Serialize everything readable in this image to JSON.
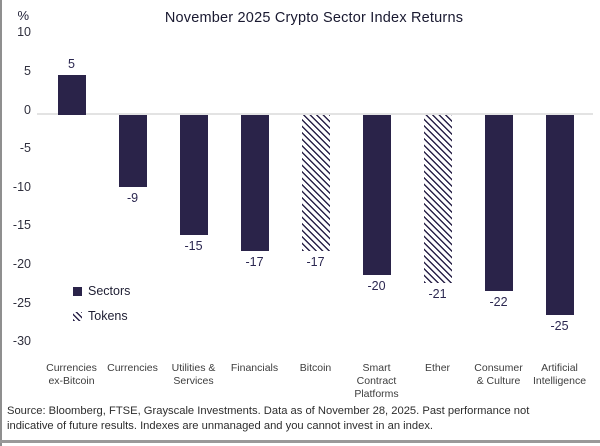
{
  "chart_data": {
    "type": "bar",
    "title": "November 2025 Crypto Sector Index Returns",
    "ylabel": "%",
    "ylim": [
      -30,
      10
    ],
    "yticks": [
      "10",
      "5",
      "0",
      "-5",
      "-10",
      "-15",
      "-20",
      "-25",
      "-30"
    ],
    "grid": "zero-line-only",
    "legend_position": "lower-left-inside",
    "categories": [
      "Currencies\nex-Bitcoin",
      "Currencies",
      "Utilities &\nServices",
      "Financials",
      "Bitcoin",
      "Smart\nContract\nPlatforms",
      "Ether",
      "Consumer\n& Culture",
      "Artificial\nIntelligence"
    ],
    "values": [
      5,
      -9,
      -15,
      -17,
      -17,
      -20,
      -21,
      -22,
      -25
    ],
    "bar_styles": [
      "solid",
      "solid",
      "solid",
      "solid",
      "hatched",
      "solid",
      "hatched",
      "solid",
      "solid"
    ],
    "legend": [
      {
        "label": "Sectors",
        "style": "solid"
      },
      {
        "label": "Tokens",
        "style": "hatched"
      }
    ],
    "colors": {
      "bar": "#2a2349",
      "hatch_background": "#ffffff",
      "zero_line": "#e3e3e3",
      "title_text": "#191930",
      "tick_text": "#2f2f3d",
      "category_text": "#3d3d3d",
      "footer_text": "#2d2d2d",
      "frame_border": "#8f8f8f"
    }
  },
  "footer": {
    "line1": "Source: Bloomberg, FTSE, Grayscale Investments. Data as of November 28, 2025. Past performance not",
    "line2": "indicative of future results. Indexes are unmanaged and you cannot invest in an index."
  }
}
